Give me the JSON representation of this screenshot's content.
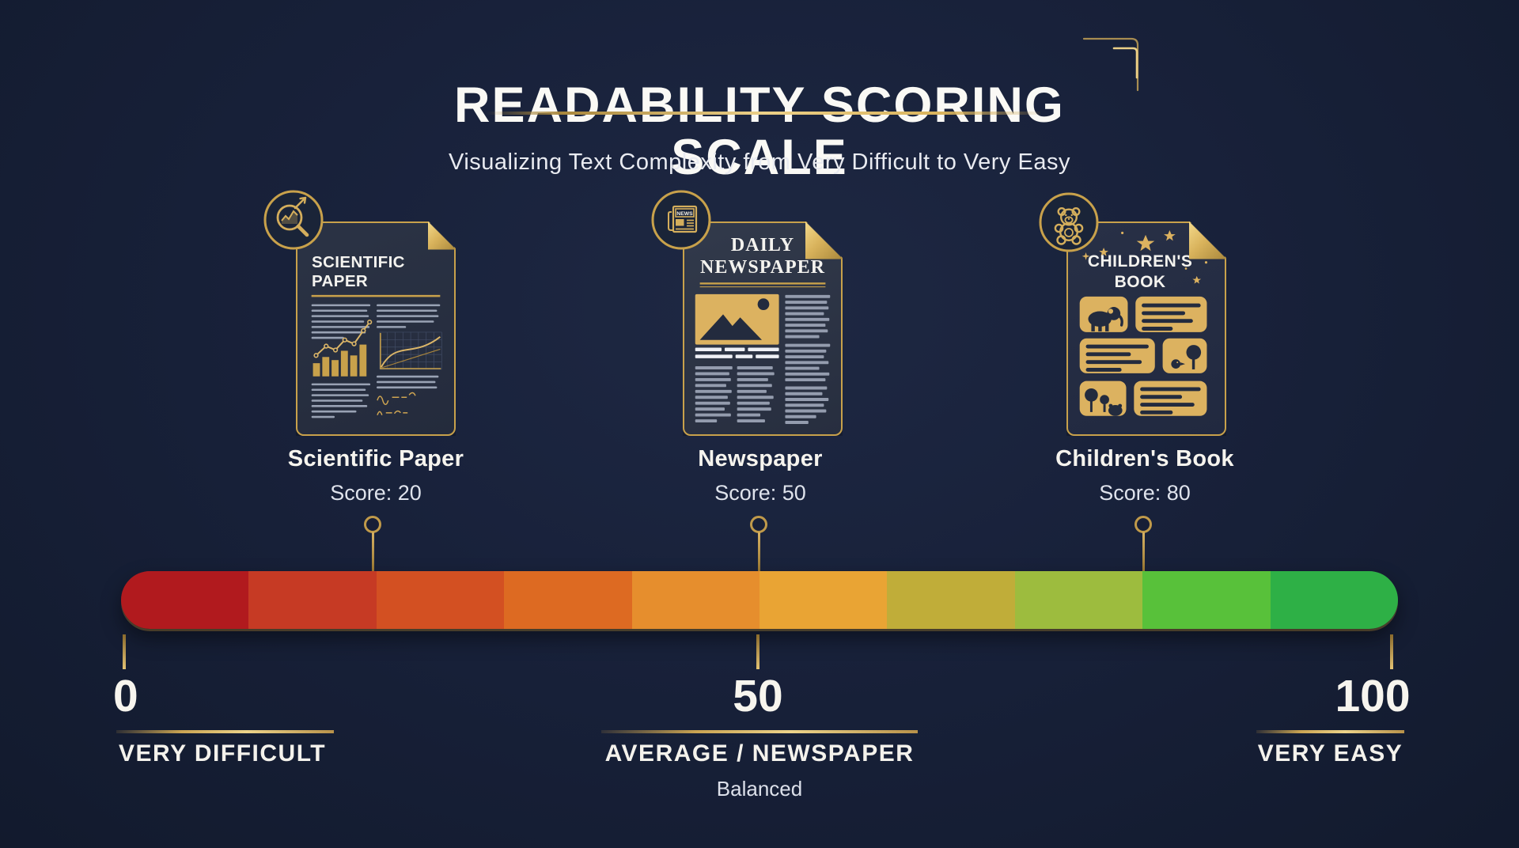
{
  "title": "READABILITY SCORING SCALE",
  "subtitle": "Visualizing Text Complexity from Very Difficult to Very Easy",
  "documents": [
    {
      "doc_title_line1": "SCIENTIFIC",
      "doc_title_line2": "PAPER",
      "label": "Scientific Paper",
      "score": 20,
      "score_text": "Score: 20",
      "badge_icon": "magnifier-trend-icon"
    },
    {
      "doc_title_line1": "DAILY",
      "doc_title_line2": "NEWSPAPER",
      "label": "Newspaper",
      "score": 50,
      "score_text": "Score: 50",
      "badge_icon": "newspaper-icon",
      "badge_label": "NEWS"
    },
    {
      "doc_title_line1": "CHILDREN'S",
      "doc_title_line2": "BOOK",
      "label": "Children's Book",
      "score": 80,
      "score_text": "Score: 80",
      "badge_icon": "teddy-bear-icon"
    }
  ],
  "scale_bar": {
    "min": 0,
    "max": 100,
    "segment_colors": [
      "#b11a1e",
      "#c63a24",
      "#d35022",
      "#dd6a22",
      "#e68e2d",
      "#e9a434",
      "#c0ad39",
      "#9dbc3e",
      "#58c13a",
      "#2eb046"
    ],
    "markers": [
      {
        "value": "0",
        "caption": "VERY DIFFICULT"
      },
      {
        "value": "50",
        "caption": "AVERAGE / NEWSPAPER",
        "subcaption": "Balanced"
      },
      {
        "value": "100",
        "caption": "VERY EASY"
      }
    ]
  },
  "colors": {
    "background": "#18213a",
    "gold": "#c8a14b",
    "gold_bright": "#ecd088",
    "text": "#f7f5ee",
    "muted_text": "#dfe3ec"
  }
}
